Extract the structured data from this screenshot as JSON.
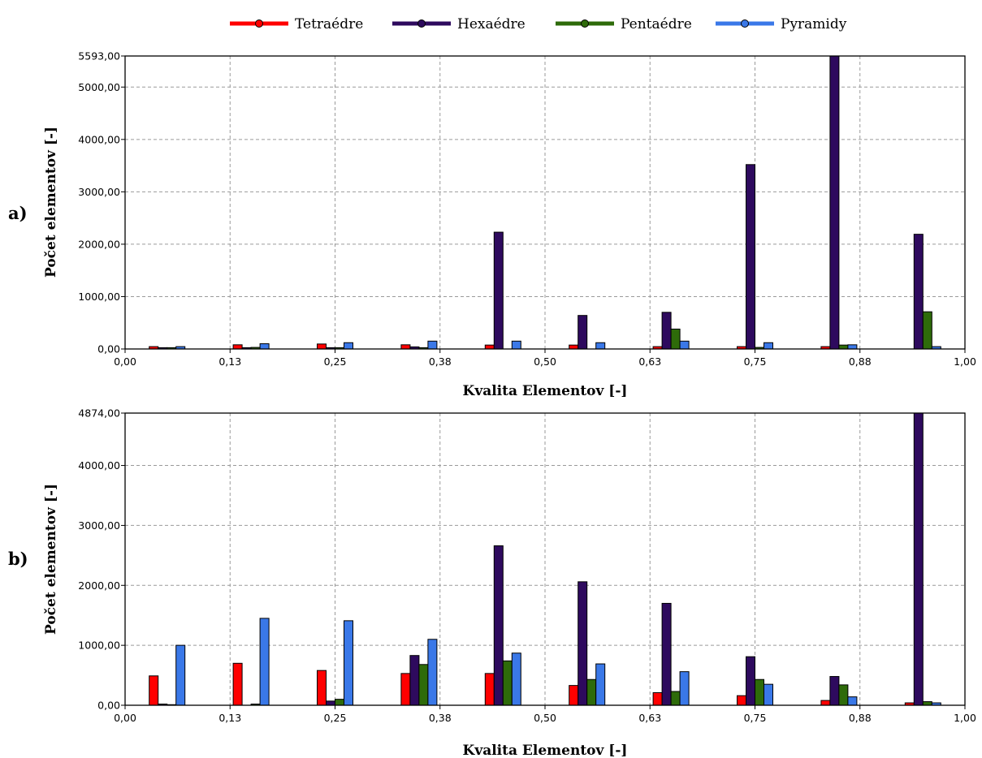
{
  "legend": [
    {
      "label": "Tetraédre",
      "color": "#ff0000"
    },
    {
      "label": "Hexaédre",
      "color": "#2e0a5e"
    },
    {
      "label": "Pentaédre",
      "color": "#2e6b0a"
    },
    {
      "label": "Pyramidy",
      "color": "#3a78e8"
    }
  ],
  "chart_data": [
    {
      "type": "bar",
      "panel_label": "a)",
      "xlabel": "Kvalita Elementov [-]",
      "ylabel": "Počet elementov [-]",
      "xlim": [
        0,
        1
      ],
      "ylim": [
        0,
        5593
      ],
      "x_ticks": [
        "0,00",
        "0,13",
        "0,25",
        "0,38",
        "0,50",
        "0,63",
        "0,75",
        "0,88",
        "1,00"
      ],
      "y_ticks": [
        {
          "value": 0,
          "label": "0,00"
        },
        {
          "value": 1000,
          "label": "1000,00"
        },
        {
          "value": 2000,
          "label": "2000,00"
        },
        {
          "value": 3000,
          "label": "3000,00"
        },
        {
          "value": 4000,
          "label": "4000,00"
        },
        {
          "value": 5000,
          "label": "5000,00"
        },
        {
          "value": 5593,
          "label": "5593,00"
        }
      ],
      "grid": true,
      "categories": [
        0.05,
        0.15,
        0.25,
        0.35,
        0.45,
        0.55,
        0.65,
        0.75,
        0.85,
        0.95
      ],
      "series": [
        {
          "name": "Tetraédre",
          "values": [
            45,
            80,
            95,
            80,
            75,
            75,
            45,
            45,
            45,
            0
          ]
        },
        {
          "name": "Hexaédre",
          "values": [
            25,
            25,
            25,
            40,
            2230,
            640,
            700,
            3520,
            5593,
            2190
          ]
        },
        {
          "name": "Pentaédre",
          "values": [
            25,
            30,
            25,
            25,
            0,
            0,
            380,
            30,
            75,
            710
          ]
        },
        {
          "name": "Pyramidy",
          "values": [
            45,
            100,
            120,
            150,
            150,
            120,
            150,
            120,
            80,
            45
          ]
        }
      ]
    },
    {
      "type": "bar",
      "panel_label": "b)",
      "xlabel": "Kvalita Elementov [-]",
      "ylabel": "Počet elementov [-]",
      "xlim": [
        0,
        1
      ],
      "ylim": [
        0,
        4874
      ],
      "x_ticks": [
        "0,00",
        "0,13",
        "0,25",
        "0,38",
        "0,50",
        "0,63",
        "0,75",
        "0,88",
        "1,00"
      ],
      "y_ticks": [
        {
          "value": 0,
          "label": "0,00"
        },
        {
          "value": 1000,
          "label": "1000,00"
        },
        {
          "value": 2000,
          "label": "2000,00"
        },
        {
          "value": 3000,
          "label": "3000,00"
        },
        {
          "value": 4000,
          "label": "4000,00"
        },
        {
          "value": 4874,
          "label": "4874,00"
        }
      ],
      "grid": true,
      "categories": [
        0.05,
        0.15,
        0.25,
        0.35,
        0.45,
        0.55,
        0.65,
        0.75,
        0.85,
        0.95
      ],
      "series": [
        {
          "name": "Tetraédre",
          "values": [
            490,
            700,
            580,
            530,
            530,
            330,
            210,
            160,
            80,
            40
          ]
        },
        {
          "name": "Hexaédre",
          "values": [
            20,
            0,
            70,
            830,
            2660,
            2060,
            1700,
            810,
            480,
            4874
          ]
        },
        {
          "name": "Pentaédre",
          "values": [
            10,
            20,
            100,
            680,
            740,
            430,
            230,
            430,
            340,
            60
          ]
        },
        {
          "name": "Pyramidy",
          "values": [
            1000,
            1450,
            1410,
            1100,
            870,
            690,
            560,
            350,
            140,
            40
          ]
        }
      ]
    }
  ]
}
